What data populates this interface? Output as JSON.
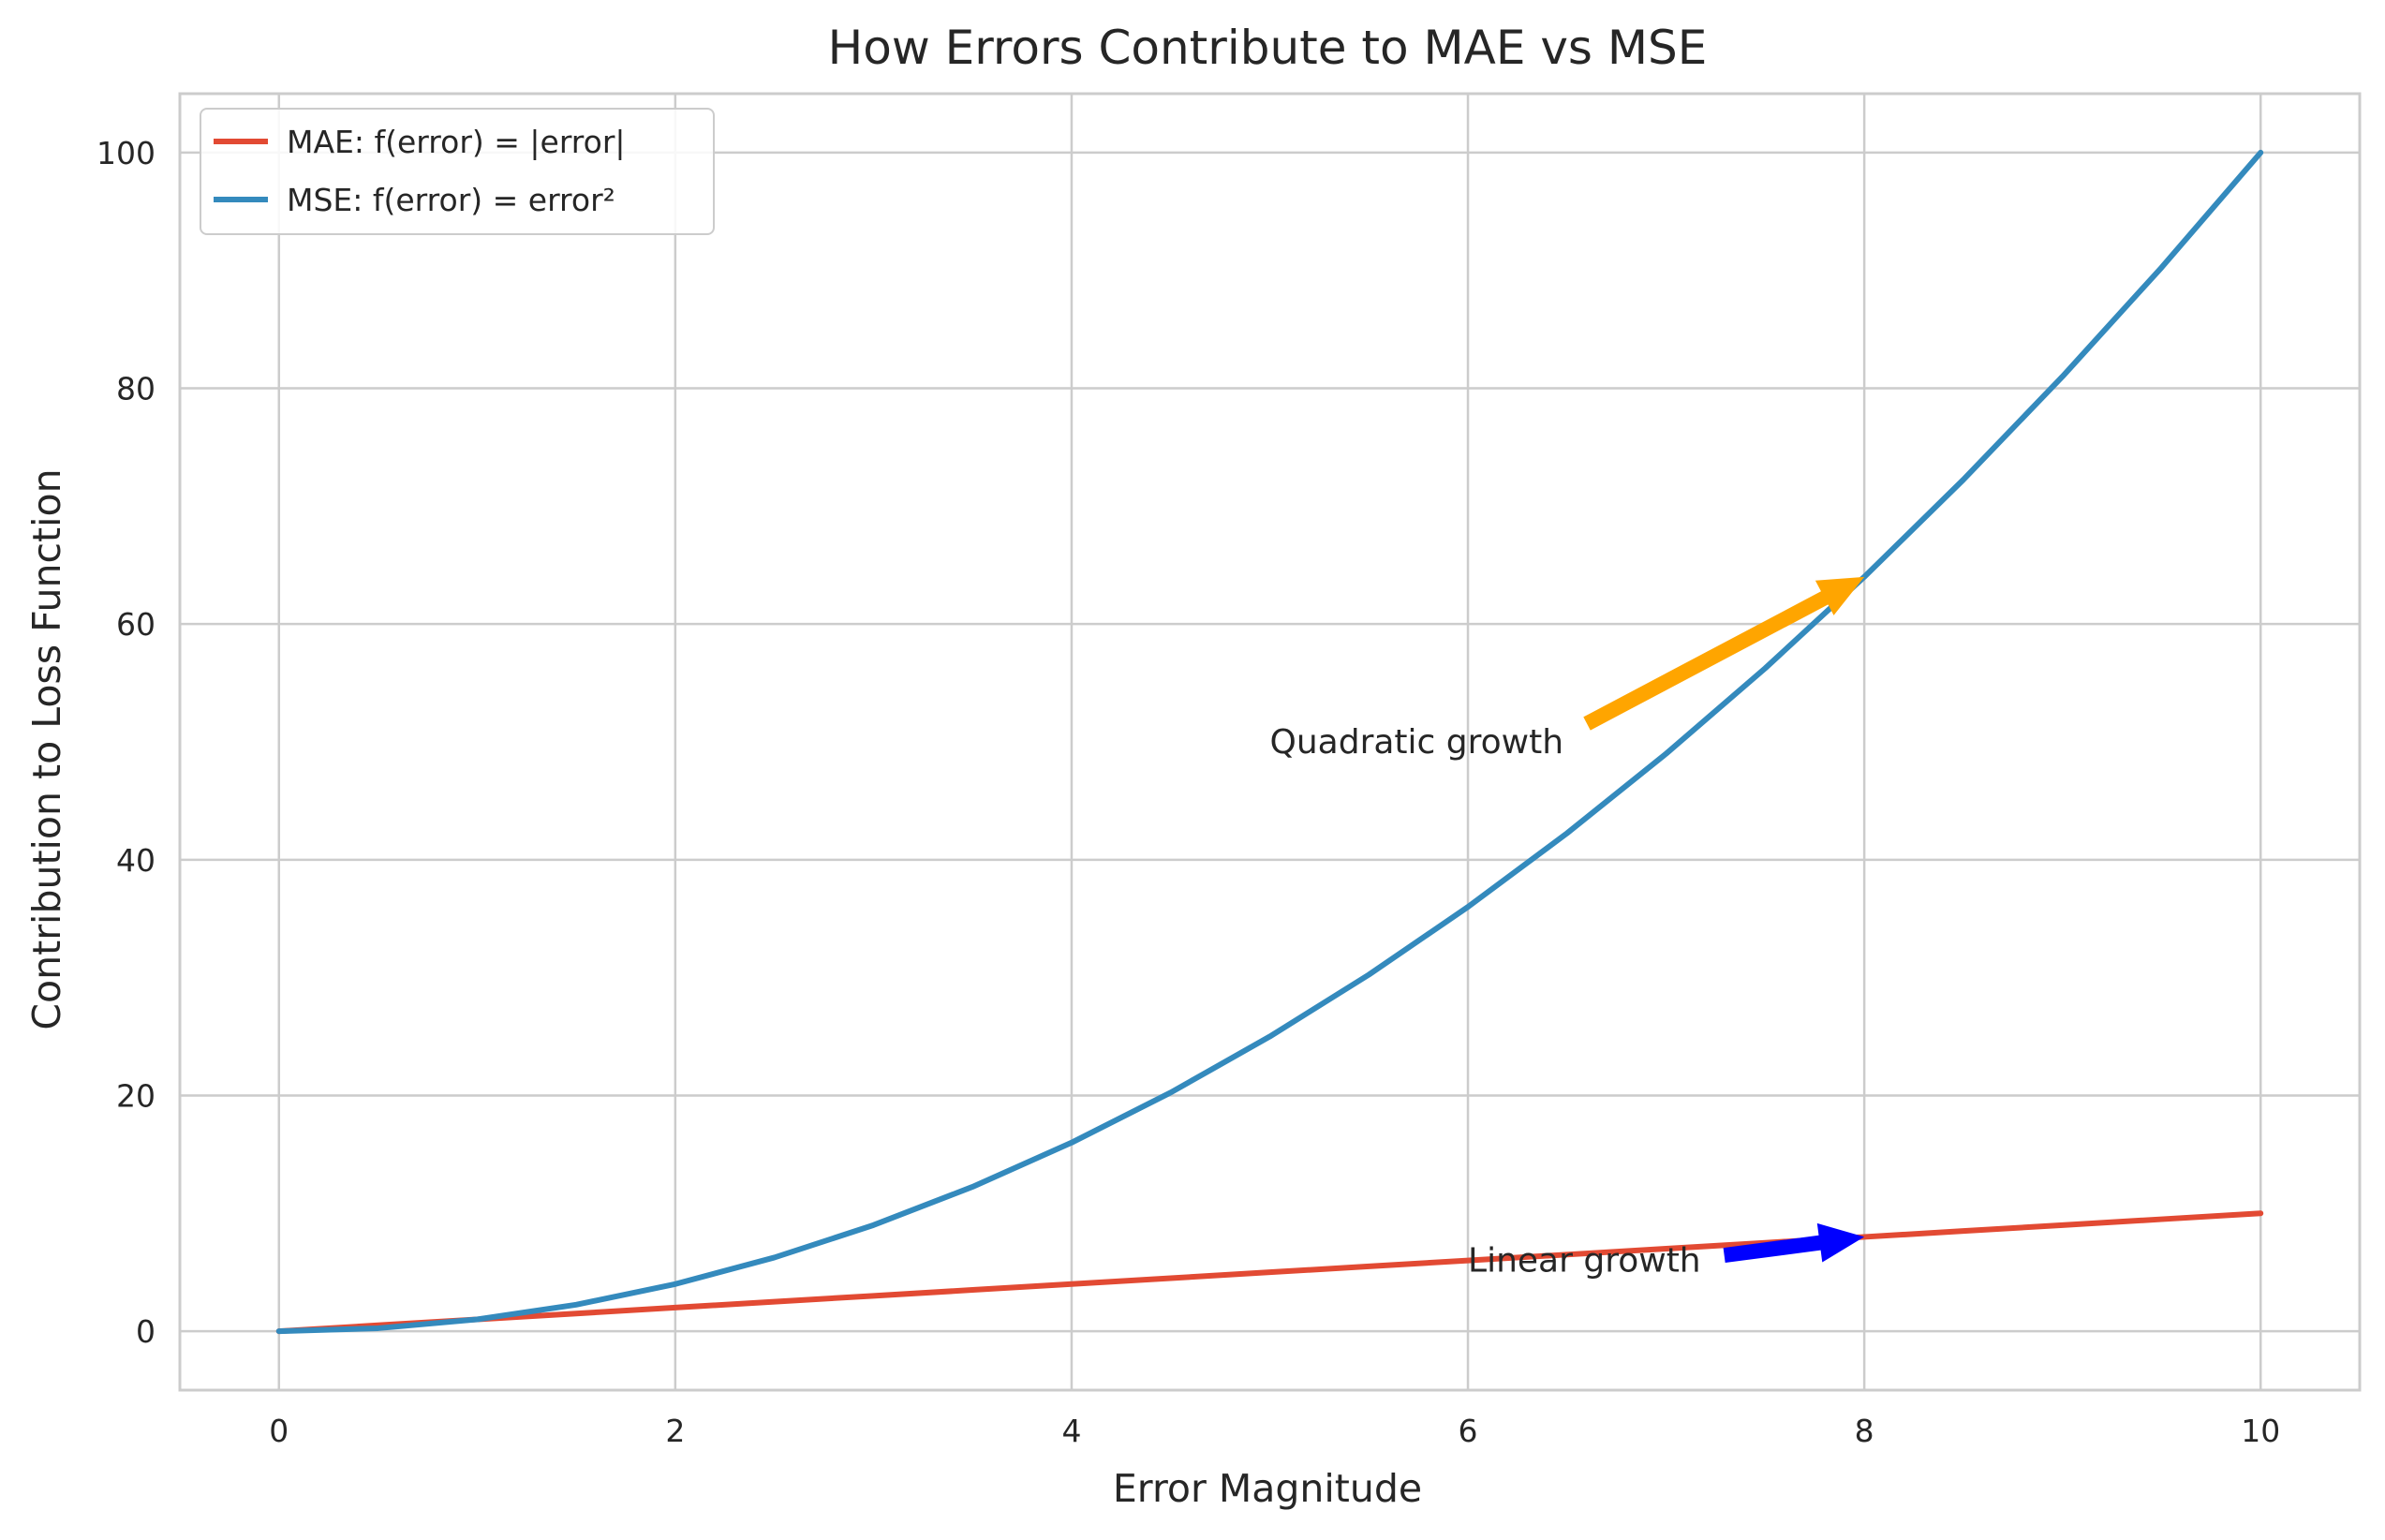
{
  "chart_data": {
    "type": "line",
    "title": "How Errors Contribute to MAE vs MSE",
    "xlabel": "Error Magnitude",
    "ylabel": "Contribution to Loss Function",
    "xlim": [
      -0.5,
      10.5
    ],
    "ylim": [
      -5,
      105
    ],
    "xticks": [
      0,
      2,
      4,
      6,
      8,
      10
    ],
    "yticks": [
      0,
      20,
      40,
      60,
      80,
      100
    ],
    "grid": true,
    "legend_position": "upper-left",
    "series": [
      {
        "name": "MAE: f(error) = |error|",
        "color": "#E24A33",
        "x": [
          0,
          0.5,
          1,
          1.5,
          2,
          2.5,
          3,
          3.5,
          4,
          4.5,
          5,
          5.5,
          6,
          6.5,
          7,
          7.5,
          8,
          8.5,
          9,
          9.5,
          10
        ],
        "y": [
          0,
          0.5,
          1,
          1.5,
          2,
          2.5,
          3,
          3.5,
          4,
          4.5,
          5,
          5.5,
          6,
          6.5,
          7,
          7.5,
          8,
          8.5,
          9,
          9.5,
          10
        ]
      },
      {
        "name": "MSE: f(error) = error²",
        "color": "#348ABD",
        "x": [
          0,
          0.5,
          1,
          1.5,
          2,
          2.5,
          3,
          3.5,
          4,
          4.5,
          5,
          5.5,
          6,
          6.5,
          7,
          7.5,
          8,
          8.5,
          9,
          9.5,
          10
        ],
        "y": [
          0,
          0.25,
          1,
          2.25,
          4,
          6.25,
          9,
          12.25,
          16,
          20.25,
          25,
          30.25,
          36,
          42.25,
          49,
          56.25,
          64,
          72.25,
          81,
          90.25,
          100
        ]
      }
    ],
    "annotations": [
      {
        "text": "Quadratic growth",
        "xytext": [
          5,
          50
        ],
        "xy": [
          8,
          64
        ],
        "arrow_color": "#FFA500"
      },
      {
        "text": "Linear growth",
        "xytext": [
          6,
          6
        ],
        "xy": [
          8,
          8
        ],
        "arrow_color": "#0000FF"
      }
    ]
  }
}
